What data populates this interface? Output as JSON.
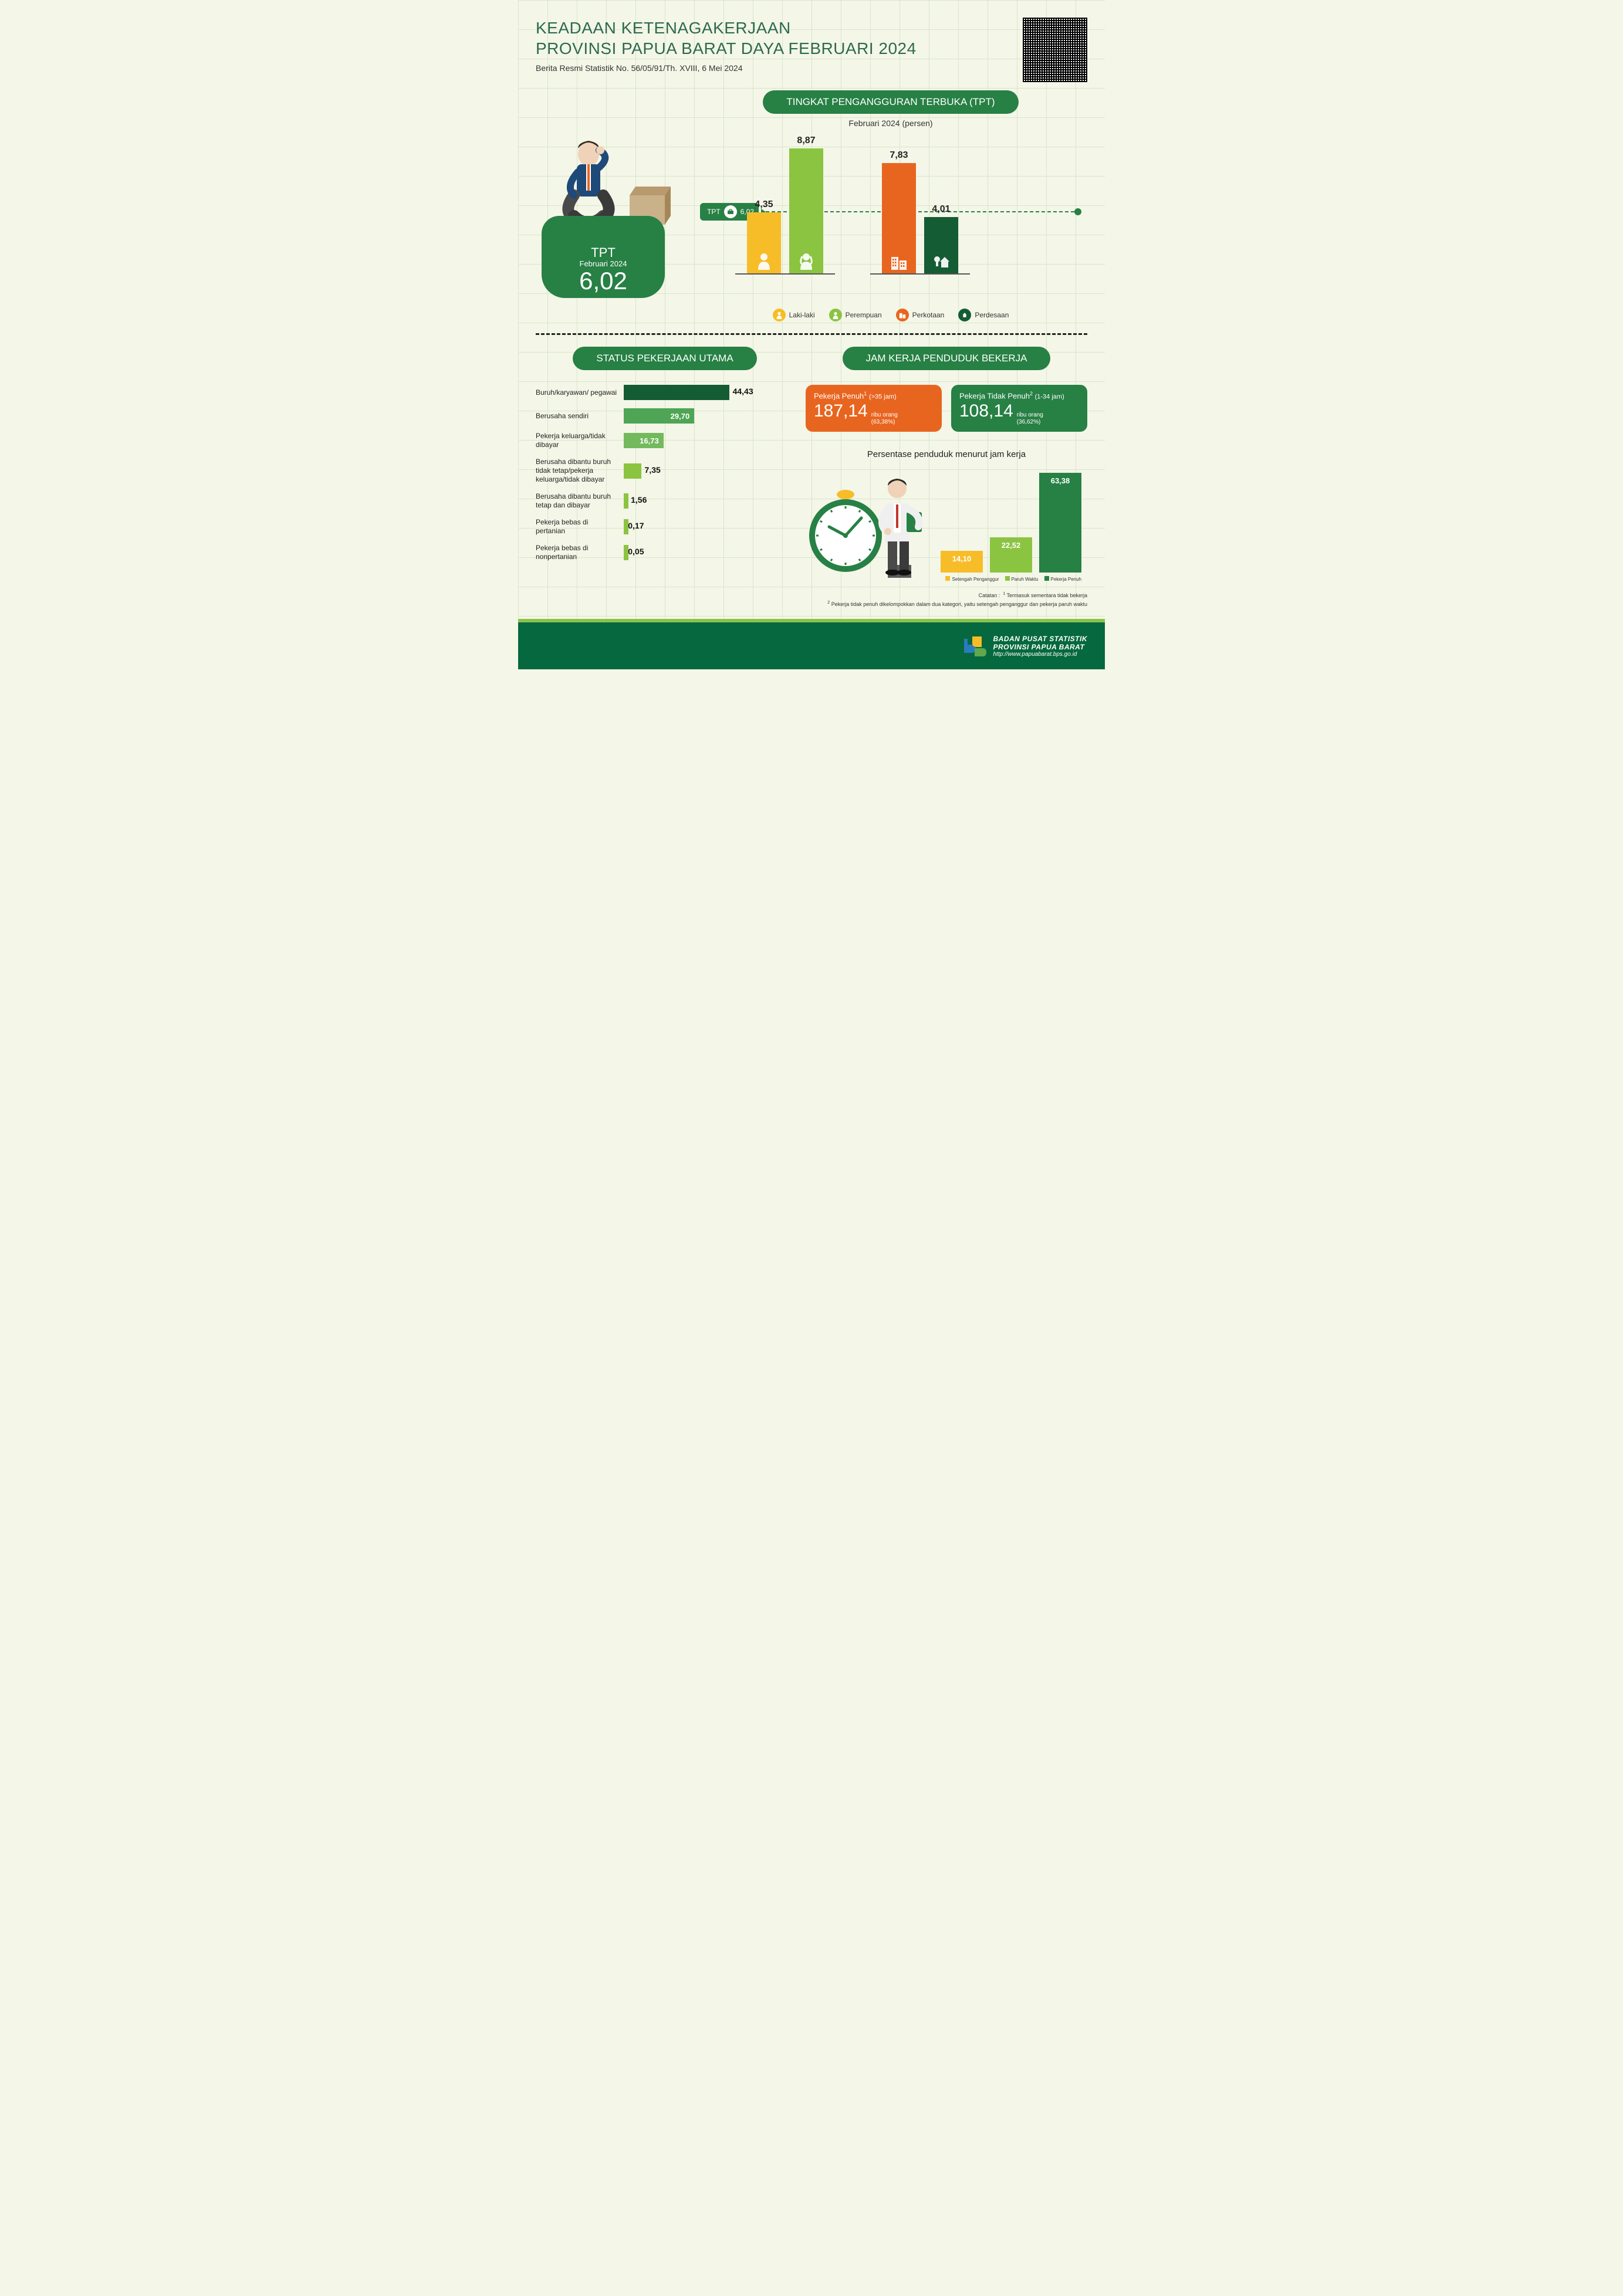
{
  "header": {
    "title_l1": "KEADAAN KETENAGAKERJAAN",
    "title_l2": "PROVINSI PAPUA BARAT DAYA FEBRUARI 2024",
    "subtitle": "Berita Resmi Statistik No. 56/05/91/Th. XVIII, 6 Mei 2024"
  },
  "colors": {
    "green_dark": "#278044",
    "green_mid": "#4ea555",
    "green_lime": "#8bc441",
    "orange": "#e8651f",
    "yellow": "#f7bd28",
    "green_deep": "#145c33",
    "grid": "#d8e6c8",
    "bg": "#f4f6e8",
    "footer": "#06683e"
  },
  "tpt": {
    "section_title": "TINGKAT PENGANGGURAN TERBUKA (TPT)",
    "chart_subtitle": "Februari 2024 (persen)",
    "badge_l1": "TPT",
    "badge_l2": "Februari 2024",
    "badge_value": "6,02",
    "ref_label": "TPT",
    "ref_value": "6,02",
    "ymax": 10,
    "bars": [
      {
        "label": "Laki-laki",
        "value_str": "4,35",
        "value": 4.35,
        "color": "#f7bd28",
        "icon": "male"
      },
      {
        "label": "Perempuan",
        "value_str": "8,87",
        "value": 8.87,
        "color": "#8bc441",
        "icon": "female"
      },
      {
        "label": "Perkotaan",
        "value_str": "7,83",
        "value": 7.83,
        "color": "#e8651f",
        "icon": "city"
      },
      {
        "label": "Perdesaan",
        "value_str": "4,01",
        "value": 4.01,
        "color": "#145c33",
        "icon": "house"
      }
    ],
    "legend": [
      {
        "label": "Laki-laki",
        "color": "#f7bd28",
        "icon": "male"
      },
      {
        "label": "Perempuan",
        "color": "#8bc441",
        "icon": "female"
      },
      {
        "label": "Perkotaan",
        "color": "#e8651f",
        "icon": "city"
      },
      {
        "label": "Perdesaan",
        "color": "#145c33",
        "icon": "house"
      }
    ]
  },
  "status": {
    "section_title": "STATUS PEKERJAAN UTAMA",
    "max": 44.43,
    "items": [
      {
        "label": "Buruh/karyawan/ pegawai",
        "value_str": "44,43",
        "value": 44.43,
        "color": "#145c33",
        "val_inside": false
      },
      {
        "label": "Berusaha sendiri",
        "value_str": "29,70",
        "value": 29.7,
        "color": "#4ea555",
        "val_inside": true
      },
      {
        "label": "Pekerja keluarga/tidak dibayar",
        "value_str": "16,73",
        "value": 16.73,
        "color": "#73b95d",
        "val_inside": true
      },
      {
        "label": "Berusaha dibantu buruh tidak tetap/pekerja keluarga/tidak dibayar",
        "value_str": "7,35",
        "value": 7.35,
        "color": "#8bc441",
        "val_inside": false
      },
      {
        "label": "Berusaha dibantu buruh tetap dan dibayar",
        "value_str": "1,56",
        "value": 1.56,
        "color": "#8bc441",
        "val_inside": false
      },
      {
        "label": "Pekerja bebas di pertanian",
        "value_str": "0,17",
        "value": 0.17,
        "color": "#8bc441",
        "val_inside": false
      },
      {
        "label": "Pekerja bebas di nonpertanian",
        "value_str": "0,05",
        "value": 0.05,
        "color": "#8bc441",
        "val_inside": false
      }
    ]
  },
  "jam": {
    "section_title": "JAM KERJA PENDUDUK BEKERJA",
    "cards": [
      {
        "heading": "Pekerja Penuh",
        "sup": "1",
        "range": "(>35 jam)",
        "value": "187,14",
        "unit_l1": "ribu orang",
        "unit_l2": "(63,38%)",
        "color": "#e8651f"
      },
      {
        "heading": "Pekerja Tidak Penuh",
        "sup": "2",
        "range": "(1-34 jam)",
        "value": "108,14",
        "unit_l1": "ribu orang",
        "unit_l2": "(36,62%)",
        "color": "#278044"
      }
    ],
    "pct_title": "Persentase penduduk menurut jam kerja",
    "bars": [
      {
        "label": "Setengah Penganggur",
        "value_str": "14,10",
        "value": 14.1,
        "color": "#f7bd28"
      },
      {
        "label": "Paruh Waktu",
        "value_str": "22,52",
        "value": 22.52,
        "color": "#8bc441"
      },
      {
        "label": "Pekerja Penuh",
        "value_str": "63,38",
        "value": 63.38,
        "color": "#278044"
      }
    ],
    "ymax": 63.38
  },
  "notes": {
    "prefix": "Catatan :",
    "n1": "Termasuk sementara tidak bekerja",
    "n2": "Pekerja tidak penuh dikelompokkan dalam dua kategori, yaitu setengah penganggur dan pekerja paruh waktu"
  },
  "footer": {
    "l1": "BADAN PUSAT STATISTIK",
    "l2": "PROVINSI PAPUA BARAT",
    "url": "http://www.papuabarat.bps.go.id"
  }
}
